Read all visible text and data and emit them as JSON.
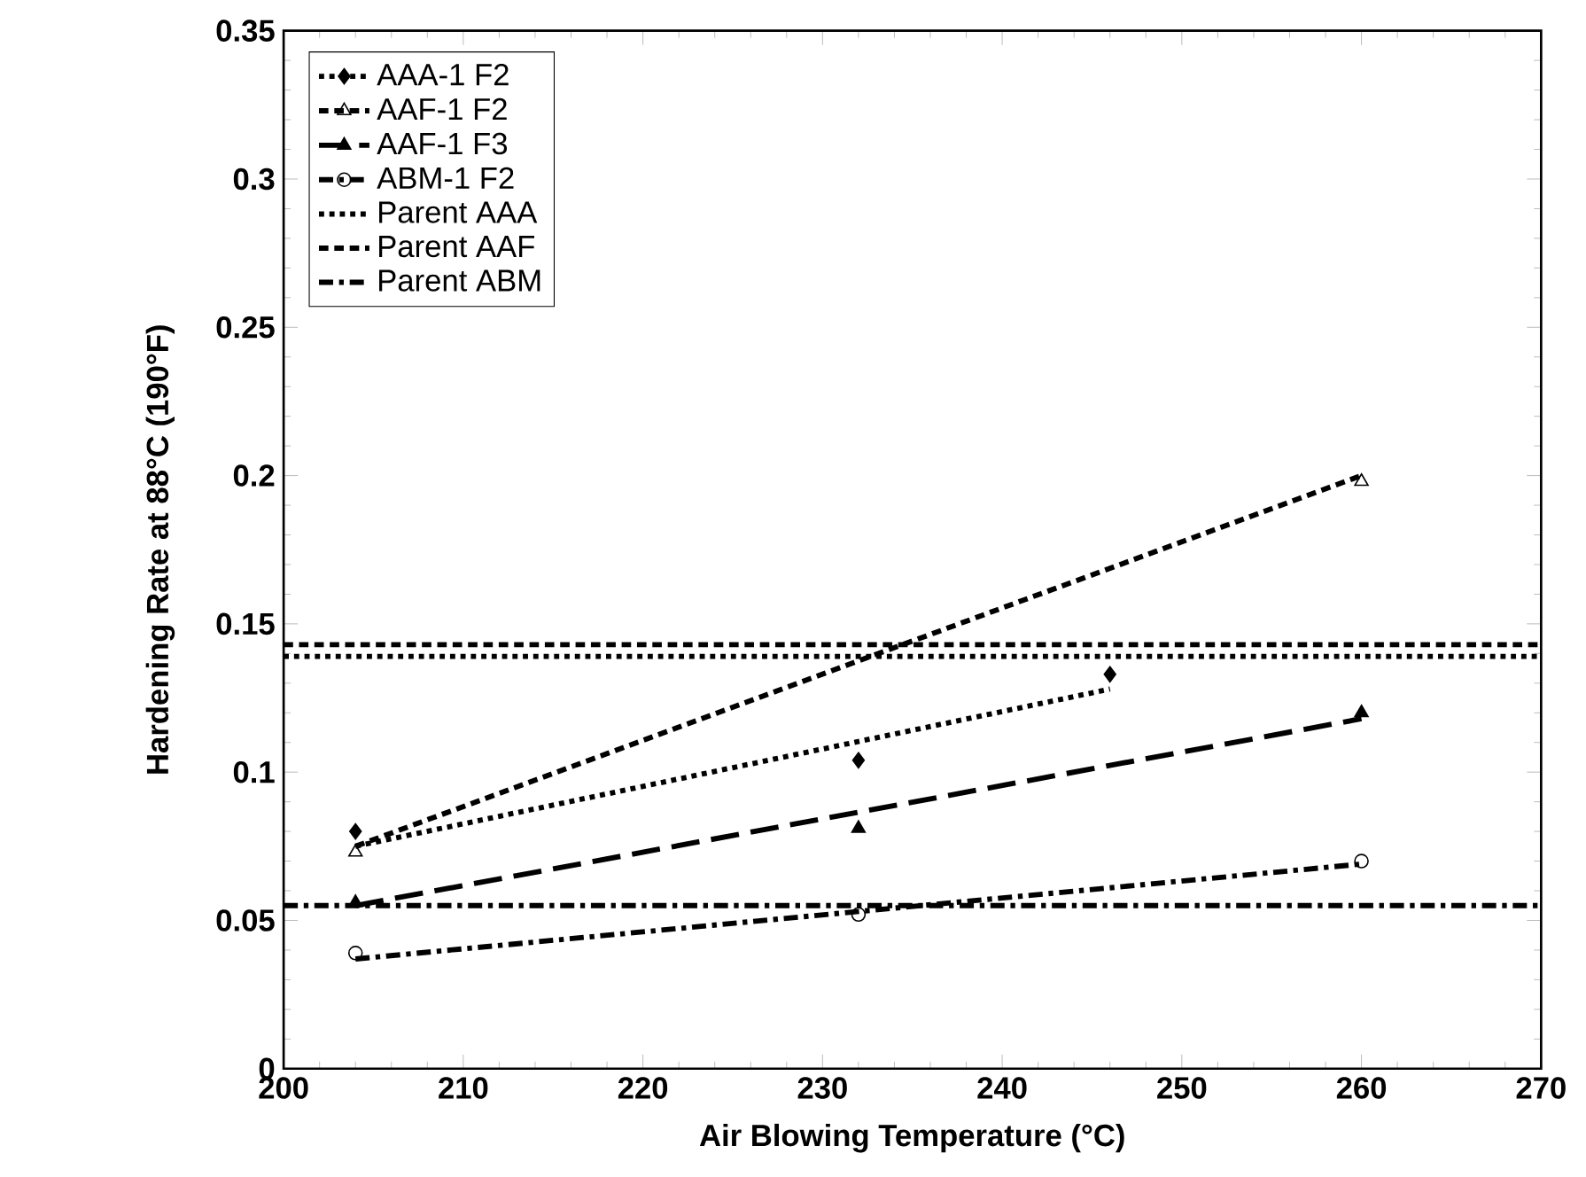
{
  "chart_data": {
    "type": "scatter",
    "xlabel": "Air Blowing Temperature (°C)",
    "ylabel": "Hardening Rate at 88°C (190°F)",
    "xlim": [
      200,
      270
    ],
    "xticks": [
      200,
      210,
      220,
      230,
      240,
      250,
      260,
      270
    ],
    "ylim": [
      0,
      0.35
    ],
    "yticks": [
      0,
      0.05,
      0.1,
      0.15,
      0.2,
      0.25,
      0.3,
      0.35
    ],
    "legend": "top left",
    "grid": false,
    "series": [
      {
        "name": "AAA-1 F2",
        "type": "scatter",
        "marker": "diamond",
        "color": "#000000",
        "x": [
          204,
          232,
          246
        ],
        "values": [
          0.08,
          0.104,
          0.133
        ]
      },
      {
        "type": "line",
        "line_style": "dotted",
        "color": "#000000",
        "x": [
          204,
          246
        ],
        "values": [
          0.075,
          0.128
        ]
      },
      {
        "name": "AAF-1 F2",
        "type": "scatter",
        "marker": "triangle-open",
        "color": "#000000",
        "x": [
          204,
          260
        ],
        "values": [
          0.073,
          0.198
        ]
      },
      {
        "type": "line",
        "line_style": "dashed",
        "color": "#000000",
        "x": [
          204,
          260
        ],
        "values": [
          0.075,
          0.2
        ]
      },
      {
        "name": "AAF-1 F3",
        "type": "scatter",
        "marker": "triangle",
        "color": "#000000",
        "x": [
          204,
          232,
          260
        ],
        "values": [
          0.056,
          0.081,
          0.12
        ]
      },
      {
        "type": "line",
        "line_style": "long dashed",
        "color": "#000000",
        "x": [
          204,
          260
        ],
        "values": [
          0.055,
          0.118
        ]
      },
      {
        "name": "ABM-1 F2",
        "type": "scatter",
        "marker": "circle-open",
        "color": "#000000",
        "x": [
          204,
          232,
          260
        ],
        "values": [
          0.039,
          0.052,
          0.07
        ]
      },
      {
        "type": "line",
        "line_style": "dashdotted",
        "color": "#000000",
        "x": [
          204,
          260
        ],
        "values": [
          0.037,
          0.069
        ]
      }
    ],
    "ref_lines": [
      {
        "axis": "y",
        "value": 0.139,
        "label": "Parent AAA",
        "line_style": "dotted",
        "color": "#000000"
      },
      {
        "axis": "y",
        "value": 0.143,
        "label": "Parent AAF",
        "line_style": "dashed",
        "color": "#000000"
      },
      {
        "axis": "y",
        "value": 0.055,
        "label": "Parent ABM",
        "line_style": "dashdotted",
        "color": "#000000"
      }
    ]
  }
}
